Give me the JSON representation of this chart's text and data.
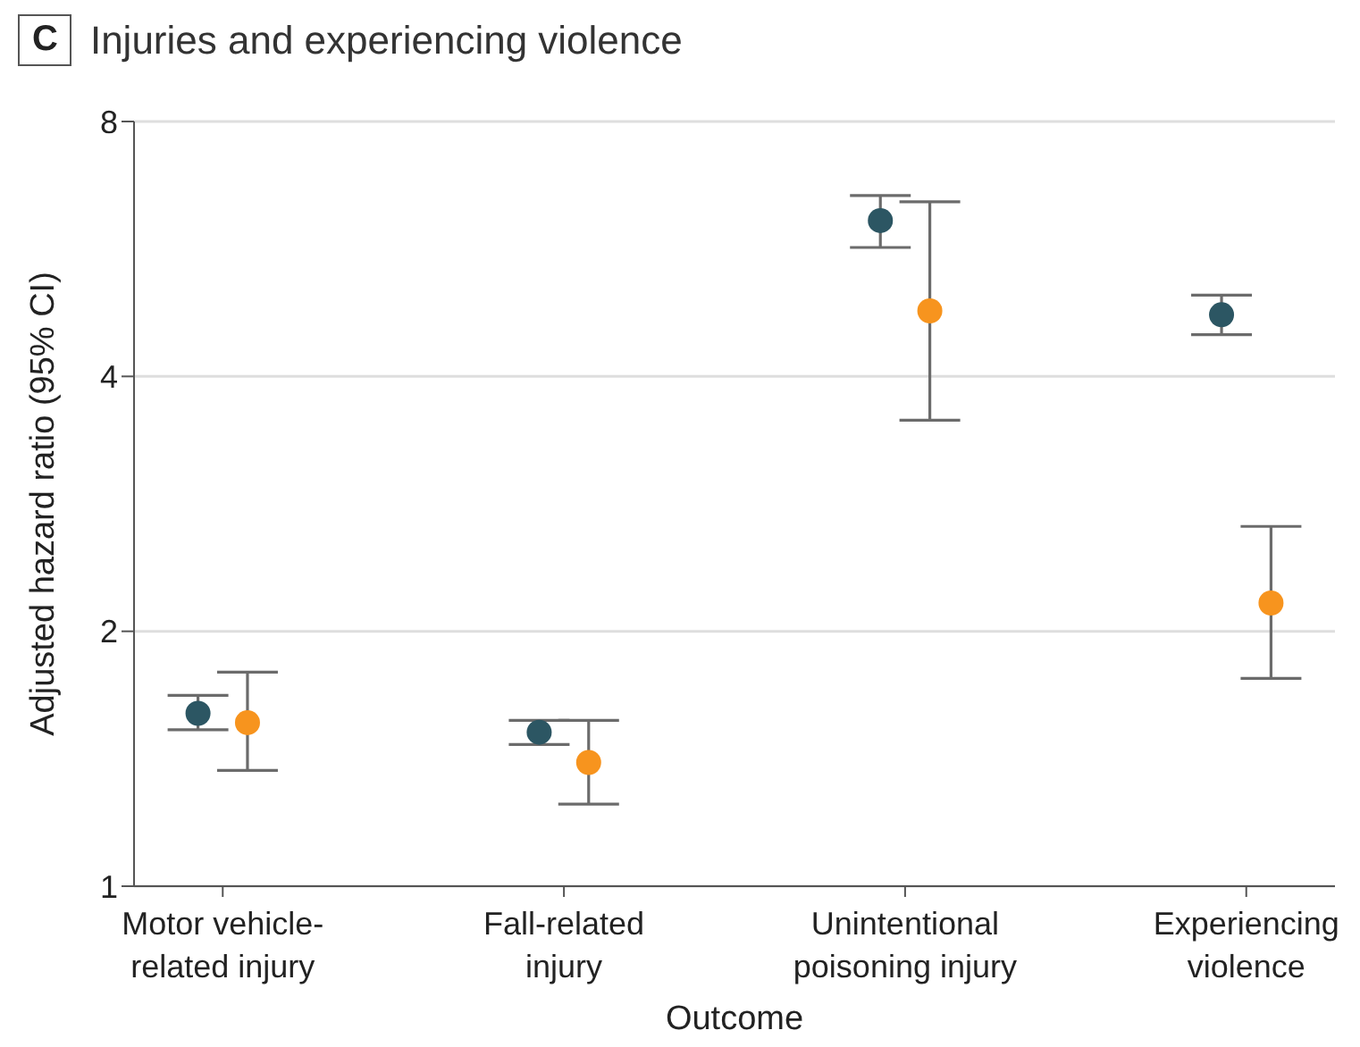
{
  "chart_data": {
    "type": "scatter",
    "title": "Injuries and experiencing violence",
    "annotations": [
      "C"
    ],
    "xlabel": "Outcome",
    "ylabel": "Adjusted hazard ratio (95% CI)",
    "categories": [
      "Motor vehicle-related injury",
      "Fall-related injury",
      "Unintentional poisoning injury",
      "Experiencing violence"
    ],
    "series": [
      {
        "color": "#2c5663",
        "values": [
          1.6,
          1.52,
          6.11,
          4.73
        ],
        "errors": [
          [
            1.53,
            1.68
          ],
          [
            1.47,
            1.57
          ],
          [
            5.68,
            6.54
          ],
          [
            4.48,
            4.99
          ]
        ]
      },
      {
        "color": "#f7941e",
        "values": [
          1.56,
          1.4,
          4.78,
          2.16
        ],
        "errors": [
          [
            1.37,
            1.79
          ],
          [
            1.25,
            1.57
          ],
          [
            3.55,
            6.43
          ],
          [
            1.76,
            2.66
          ]
        ]
      }
    ],
    "ylim": [
      1,
      8
    ],
    "yticks": [
      1,
      2,
      4,
      8
    ],
    "log": true,
    "grid": "y",
    "marker": "circle"
  }
}
